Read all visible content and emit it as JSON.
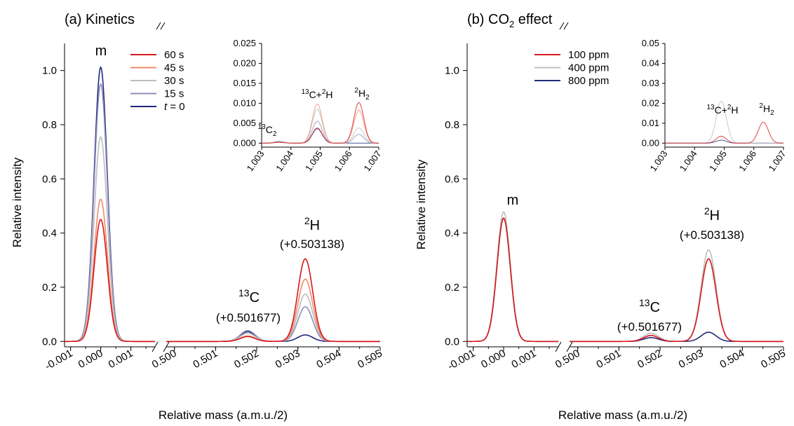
{
  "panels": [
    {
      "id": "a",
      "title": "(a) Kinetics",
      "ylabel": "Relative intensity",
      "xlabel": "Relative mass (a.m.u./2)",
      "annotations": {
        "m": "m",
        "c13_sup": "13",
        "c13_base": "C",
        "c13_shift": "(+0.501677)",
        "h2_sup": "2",
        "h2_base": "H",
        "h2_shift": "(+0.503138)"
      },
      "legend": [
        {
          "label": "60 s",
          "color": "#d7191c"
        },
        {
          "label": "45 s",
          "color": "#f08a6a"
        },
        {
          "label": "30 s",
          "color": "#bdbdbd"
        },
        {
          "label": "15 s",
          "color": "#8c8fb8"
        },
        {
          "label": "t = 0",
          "color": "#1f2a7a"
        }
      ],
      "inset": {
        "ymax": 0.025,
        "yticks": [
          "0.000",
          "0.005",
          "0.010",
          "0.015",
          "0.020",
          "0.025"
        ],
        "xticks": [
          "1.003",
          "1.004",
          "1.005",
          "1.006",
          "1.007"
        ],
        "labels": {
          "c2_sup": "13",
          "c2_base": "C",
          "c2_sub": "2",
          "ch_sup1": "13",
          "ch_mid": "C+",
          "ch_sup2": "2",
          "ch_end": "H",
          "h2_sup": "2",
          "h2_base": "H",
          "h2_sub": "2"
        }
      }
    },
    {
      "id": "b",
      "title_pre": "(b) CO",
      "title_sub": "2",
      "title_post": " effect",
      "ylabel": "Relative intensity",
      "xlabel": "Relative mass (a.m.u./2)",
      "annotations": {
        "m": "m",
        "c13_sup": "13",
        "c13_base": "C",
        "c13_shift": "(+0.501677)",
        "h2_sup": "2",
        "h2_base": "H",
        "h2_shift": "(+0.503138)"
      },
      "legend": [
        {
          "label": "100 ppm",
          "color": "#d7191c"
        },
        {
          "label": "400 ppm",
          "color": "#bdbdbd"
        },
        {
          "label": "800 ppm",
          "color": "#1f2a7a"
        }
      ],
      "inset": {
        "ymax": 0.05,
        "yticks": [
          "0.00",
          "0.01",
          "0.02",
          "0.03",
          "0.04",
          "0.05"
        ],
        "xticks": [
          "1.003",
          "1.004",
          "1.005",
          "1.006",
          "1.007"
        ],
        "labels": {
          "ch_sup1": "13",
          "ch_mid": "C+",
          "ch_sup2": "2",
          "ch_end": "H",
          "h2_sup": "2",
          "h2_base": "H",
          "h2_sub": "2"
        }
      }
    }
  ],
  "chart_data": [
    {
      "type": "line",
      "title": "(a) Kinetics",
      "xlabel": "Relative mass (a.m.u./2)",
      "ylabel": "Relative intensity",
      "ylim": [
        -0.02,
        1.1
      ],
      "yticks": [
        "0.0",
        "0.2",
        "0.4",
        "0.6",
        "0.8",
        "1.0"
      ],
      "xlim_left": [
        -0.0012,
        0.0018
      ],
      "xlim_right": [
        0.4998,
        0.505
      ],
      "xticks_left": [
        "-0.001",
        "0.000",
        "0.001"
      ],
      "xticks_right": [
        "0.500",
        "0.501",
        "0.502",
        "0.503",
        "0.504",
        "0.505"
      ],
      "axis_break": true,
      "legend_position": "top-left",
      "peaks": {
        "m": 0.0,
        "13C": 0.50178,
        "2H": 0.50318
      },
      "series": [
        {
          "name": "60 s",
          "color": "#d7191c",
          "m": 0.45,
          "c13": 0.018,
          "h2": 0.305
        },
        {
          "name": "45 s",
          "color": "#f08a6a",
          "m": 0.525,
          "c13": 0.02,
          "h2": 0.23
        },
        {
          "name": "30 s",
          "color": "#bdbdbd",
          "m": 0.755,
          "c13": 0.03,
          "h2": 0.175
        },
        {
          "name": "15 s",
          "color": "#8c8fb8",
          "m": 0.95,
          "c13": 0.04,
          "h2": 0.128
        },
        {
          "name": "t = 0",
          "color": "#1f2a7a",
          "m": 1.012,
          "c13": 0.036,
          "h2": 0.024
        }
      ],
      "inset": {
        "xlim": [
          1.003,
          1.007
        ],
        "ylim": [
          -0.001,
          0.025
        ],
        "peaks": {
          "13C2": 1.0036,
          "13C+2H": 1.0049,
          "2H2": 1.00632
        },
        "series": [
          {
            "name": "60 s",
            "c2": 0.0002,
            "ch": 0.0038,
            "hh": 0.0102
          },
          {
            "name": "45 s",
            "c2": 0.0002,
            "ch": 0.0098,
            "hh": 0.0083
          },
          {
            "name": "30 s",
            "c2": 0.0003,
            "ch": 0.0085,
            "hh": 0.0038
          },
          {
            "name": "15 s",
            "c2": 0.0003,
            "ch": 0.0055,
            "hh": 0.0022
          },
          {
            "name": "t = 0",
            "c2": 0.0004,
            "ch": 0.0036,
            "hh": 0.0
          }
        ]
      }
    },
    {
      "type": "line",
      "title": "(b) CO2 effect",
      "xlabel": "Relative mass (a.m.u./2)",
      "ylabel": "Relative intensity",
      "ylim": [
        -0.02,
        1.1
      ],
      "yticks": [
        "0.0",
        "0.2",
        "0.4",
        "0.6",
        "0.8",
        "1.0"
      ],
      "xlim_left": [
        -0.0012,
        0.0018
      ],
      "xlim_right": [
        0.4998,
        0.505
      ],
      "xticks_left": [
        "-0.001",
        "0.000",
        "0.001"
      ],
      "xticks_right": [
        "0.500",
        "0.501",
        "0.502",
        "0.503",
        "0.504",
        "0.505"
      ],
      "axis_break": true,
      "legend_position": "top-left",
      "peaks": {
        "m": 0.0,
        "13C": 0.50178,
        "2H": 0.50318
      },
      "series": [
        {
          "name": "100 ppm",
          "color": "#d7191c",
          "m": 0.455,
          "c13": 0.022,
          "h2": 0.305
        },
        {
          "name": "400 ppm",
          "color": "#bdbdbd",
          "m": 0.478,
          "c13": 0.03,
          "h2": 0.338
        },
        {
          "name": "800 ppm",
          "color": "#1f2a7a",
          "m": 0.455,
          "c13": 0.014,
          "h2": 0.034
        }
      ],
      "inset": {
        "xlim": [
          1.003,
          1.007
        ],
        "ylim": [
          -0.002,
          0.05
        ],
        "peaks": {
          "13C+2H": 1.0049,
          "2H2": 1.00632
        },
        "series": [
          {
            "name": "100 ppm",
            "ch": 0.0035,
            "hh": 0.0105
          },
          {
            "name": "400 ppm",
            "ch": 0.021,
            "hh": 0.0
          },
          {
            "name": "800 ppm",
            "ch": 0.0015,
            "hh": 0.0
          }
        ]
      }
    }
  ]
}
